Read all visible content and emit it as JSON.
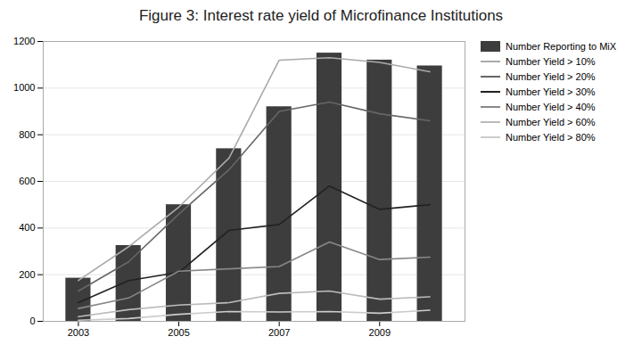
{
  "chart_data": {
    "type": "bar",
    "title": "Figure 3: Interest rate yield of Microfinance Institutions",
    "x": [
      2003,
      2004,
      2005,
      2006,
      2007,
      2008,
      2009,
      2010
    ],
    "series": [
      {
        "name": "Number Reporting to MiX",
        "type": "bar",
        "color": "#3d3d3d",
        "values": [
          185,
          325,
          500,
          740,
          920,
          1150,
          1120,
          1095
        ]
      },
      {
        "name": "Number Yield > 10%",
        "type": "line",
        "color": "#aaaaaa",
        "values": [
          175,
          320,
          490,
          700,
          1120,
          1130,
          1110,
          1070
        ]
      },
      {
        "name": "Number Yield > 20%",
        "type": "line",
        "color": "#666666",
        "values": [
          130,
          255,
          460,
          650,
          900,
          940,
          890,
          860
        ]
      },
      {
        "name": "Number Yield > 30%",
        "type": "line",
        "color": "#222222",
        "values": [
          80,
          175,
          210,
          390,
          415,
          580,
          480,
          500
        ]
      },
      {
        "name": "Number Yield > 40%",
        "type": "line",
        "color": "#888888",
        "values": [
          55,
          100,
          215,
          225,
          235,
          340,
          265,
          275
        ]
      },
      {
        "name": "Number Yield > 60%",
        "type": "line",
        "color": "#bbbbbb",
        "values": [
          20,
          50,
          70,
          80,
          120,
          130,
          95,
          105
        ]
      },
      {
        "name": "Number Yield > 80%",
        "type": "line",
        "color": "#cccccc",
        "values": [
          5,
          12,
          30,
          42,
          40,
          42,
          35,
          48
        ]
      }
    ],
    "xlim": [
      2002.3,
      2010.7
    ],
    "xticks": [
      2003,
      2005,
      2007,
      2009
    ],
    "ylim": [
      0,
      1200
    ],
    "yticks": [
      0,
      200,
      400,
      600,
      800,
      1000,
      1200
    ],
    "grid": "y",
    "legend": "right"
  }
}
